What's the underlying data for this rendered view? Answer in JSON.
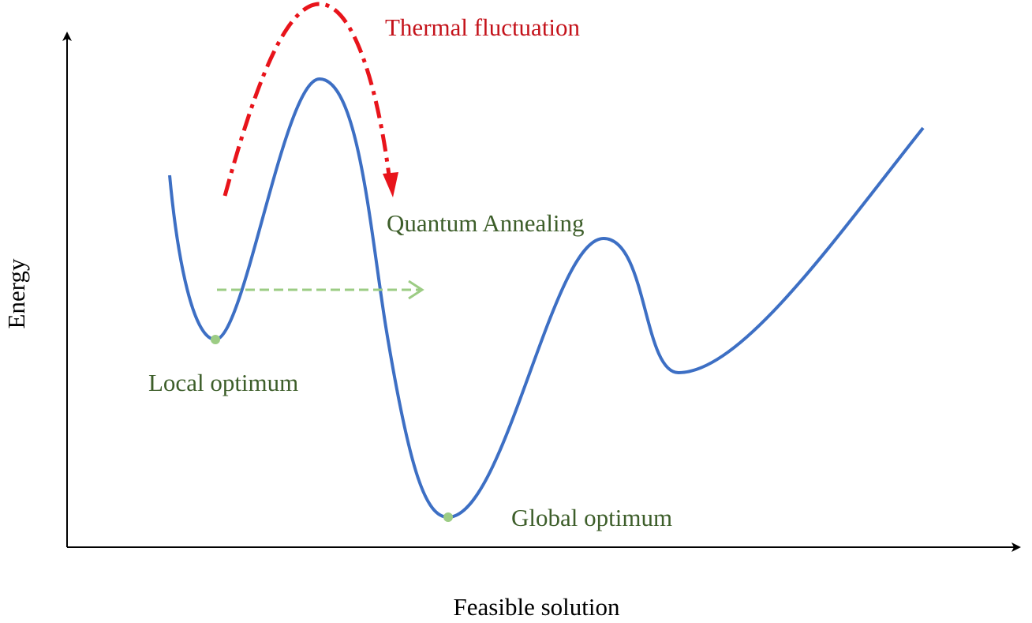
{
  "labels": {
    "thermal": "Thermal fluctuation",
    "quantum": "Quantum Annealing",
    "local": "Local optimum",
    "global": "Global optimum"
  },
  "axes": {
    "y": "Energy",
    "x": "Feasible solution"
  }
}
